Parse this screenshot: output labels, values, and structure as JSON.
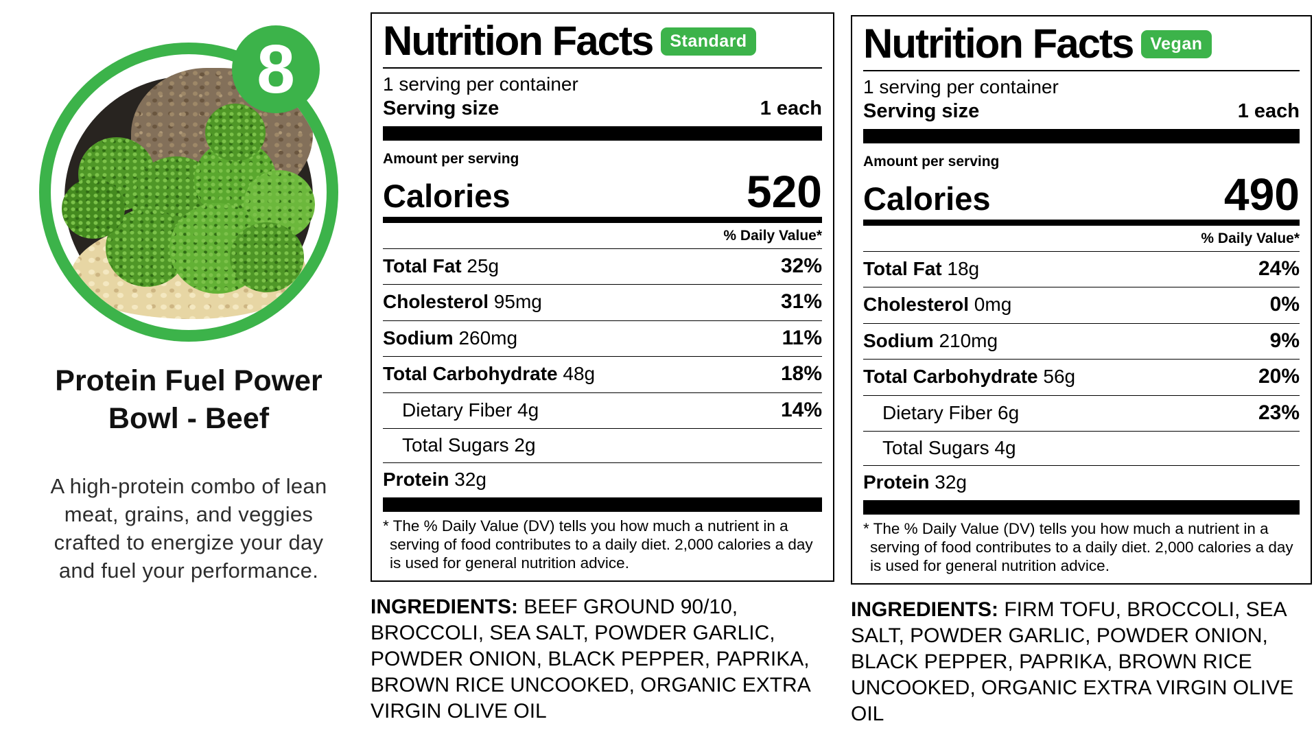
{
  "colors": {
    "accent_green": "#3cb34a"
  },
  "meal": {
    "number": "8",
    "title": "Protein Fuel Power Bowl - Beef",
    "description": "A high-protein combo of lean meat, grains, and veggies crafted to energize your day and fuel your performance."
  },
  "labels": [
    {
      "variant": "Standard",
      "title": "Nutrition Facts",
      "servings_per_container": "1 serving per container",
      "serving_size_label": "Serving size",
      "serving_size_value": "1 each",
      "amount_per_serving": "Amount per serving",
      "calories_label": "Calories",
      "calories": "520",
      "daily_value_header": "% Daily Value*",
      "rows": [
        {
          "name": "Total Fat",
          "amount": "25g",
          "dv": "32%",
          "indent": false
        },
        {
          "name": "Cholesterol",
          "amount": "95mg",
          "dv": "31%",
          "indent": false
        },
        {
          "name": "Sodium",
          "amount": "260mg",
          "dv": "11%",
          "indent": false
        },
        {
          "name": "Total Carbohydrate",
          "amount": "48g",
          "dv": "18%",
          "indent": false
        },
        {
          "name": "Dietary Fiber",
          "amount": "4g",
          "dv": "14%",
          "indent": true
        },
        {
          "name": "Total Sugars",
          "amount": "2g",
          "dv": "",
          "indent": true
        },
        {
          "name": "Protein",
          "amount": "32g",
          "dv": "",
          "indent": false
        }
      ],
      "footnote": "* The % Daily Value (DV) tells you how much a nutrient in a serving of food contributes to a daily diet. 2,000 calories a day is used for general nutrition advice.",
      "ingredients_label": "INGREDIENTS:",
      "ingredients": "BEEF GROUND 90/10, BROCCOLI, SEA SALT, POWDER GARLIC, POWDER ONION, BLACK PEPPER, PAPRIKA, BROWN RICE UNCOOKED, ORGANIC EXTRA VIRGIN OLIVE OIL"
    },
    {
      "variant": "Vegan",
      "title": "Nutrition Facts",
      "servings_per_container": "1 serving per container",
      "serving_size_label": "Serving size",
      "serving_size_value": "1 each",
      "amount_per_serving": "Amount per serving",
      "calories_label": "Calories",
      "calories": "490",
      "daily_value_header": "% Daily Value*",
      "rows": [
        {
          "name": "Total Fat",
          "amount": "18g",
          "dv": "24%",
          "indent": false
        },
        {
          "name": "Cholesterol",
          "amount": "0mg",
          "dv": "0%",
          "indent": false
        },
        {
          "name": "Sodium",
          "amount": "210mg",
          "dv": "9%",
          "indent": false
        },
        {
          "name": "Total Carbohydrate",
          "amount": "56g",
          "dv": "20%",
          "indent": false
        },
        {
          "name": "Dietary Fiber",
          "amount": "6g",
          "dv": "23%",
          "indent": true
        },
        {
          "name": "Total Sugars",
          "amount": "4g",
          "dv": "",
          "indent": true
        },
        {
          "name": "Protein",
          "amount": "32g",
          "dv": "",
          "indent": false
        }
      ],
      "footnote": "* The % Daily Value (DV) tells you how much a nutrient in a serving of food contributes to a daily diet. 2,000 calories a day is used for general nutrition advice.",
      "ingredients_label": "INGREDIENTS:",
      "ingredients": "FIRM TOFU, BROCCOLI, SEA SALT, POWDER GARLIC, POWDER ONION, BLACK PEPPER, PAPRIKA, BROWN RICE UNCOOKED, ORGANIC EXTRA VIRGIN OLIVE OIL"
    }
  ]
}
